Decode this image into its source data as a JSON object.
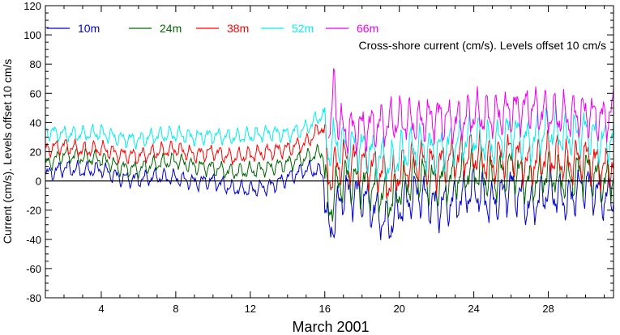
{
  "chart_data": {
    "type": "line",
    "title": "",
    "annotation": "Cross-shore current (cm/s). Levels offset 10 cm/s",
    "xlabel": "March 2001",
    "ylabel": "Current (cm/s). Levels offset 10 cm/s",
    "xlim": [
      1,
      31.5
    ],
    "ylim": [
      -80,
      120
    ],
    "x_ticks": [
      4,
      8,
      12,
      16,
      20,
      24,
      28
    ],
    "y_ticks": [
      -80,
      -60,
      -40,
      -20,
      0,
      20,
      40,
      60,
      80,
      100,
      120
    ],
    "zero_line": 0,
    "legend_placement": "top-left",
    "series": [
      {
        "name": "10m",
        "color": "#0000cc",
        "x": [
          1,
          2,
          3,
          4,
          5,
          6,
          7,
          8,
          9,
          10,
          11,
          12,
          13,
          14,
          15,
          15.9,
          16.2,
          16.6,
          17,
          18,
          19,
          19.5,
          20,
          21,
          22,
          23,
          24,
          25,
          26,
          27,
          28,
          29,
          30,
          31,
          31.5
        ],
        "values": [
          4,
          9,
          7,
          8,
          2,
          1,
          3,
          2,
          -1,
          0,
          -5,
          -6,
          -4,
          2,
          8,
          6,
          -38,
          -22,
          -8,
          -10,
          -25,
          -30,
          -18,
          -8,
          -18,
          -14,
          -6,
          -16,
          -4,
          -18,
          -6,
          -14,
          -2,
          -12,
          -8
        ]
      },
      {
        "name": "24m",
        "color": "#006600",
        "x": [
          1,
          2,
          3,
          4,
          5,
          6,
          7,
          8,
          9,
          10,
          11,
          12,
          13,
          14,
          15,
          15.9,
          16.2,
          16.6,
          17,
          18,
          19,
          19.5,
          20,
          21,
          22,
          23,
          24,
          25,
          26,
          27,
          28,
          29,
          30,
          31,
          31.5
        ],
        "values": [
          11,
          18,
          16,
          15,
          9,
          8,
          12,
          14,
          10,
          9,
          6,
          7,
          9,
          12,
          16,
          20,
          -22,
          -6,
          2,
          -2,
          -8,
          -14,
          -6,
          4,
          -2,
          2,
          8,
          0,
          10,
          -2,
          6,
          0,
          8,
          -2,
          4
        ]
      },
      {
        "name": "38m",
        "color": "#ff0000",
        "x": [
          1,
          2,
          3,
          4,
          5,
          6,
          7,
          8,
          9,
          10,
          11,
          12,
          13,
          14,
          15,
          15.9,
          16.2,
          16.6,
          17,
          18,
          19,
          19.5,
          20,
          21,
          22,
          23,
          24,
          25,
          26,
          27,
          28,
          29,
          30,
          31,
          31.5
        ],
        "values": [
          22,
          24,
          21,
          22,
          18,
          17,
          20,
          22,
          18,
          20,
          16,
          18,
          20,
          22,
          26,
          38,
          2,
          10,
          14,
          12,
          6,
          -2,
          6,
          14,
          10,
          16,
          18,
          12,
          20,
          10,
          18,
          12,
          16,
          8,
          12
        ]
      },
      {
        "name": "52m",
        "color": "#00eeee",
        "x": [
          1,
          2,
          3,
          4,
          5,
          6,
          7,
          8,
          9,
          10,
          11,
          12,
          13,
          14,
          15,
          15.9,
          16.2,
          16.6,
          17,
          18,
          19,
          19.5,
          20,
          21,
          22,
          23,
          24,
          25,
          26,
          27,
          28,
          29,
          30,
          31,
          31.5
        ],
        "values": [
          34,
          32,
          32,
          33,
          29,
          28,
          31,
          32,
          30,
          31,
          30,
          31,
          33,
          32,
          36,
          46,
          20,
          28,
          24,
          22,
          16,
          10,
          18,
          24,
          20,
          26,
          30,
          24,
          34,
          26,
          36,
          30,
          34,
          26,
          30
        ]
      },
      {
        "name": "66m",
        "color": "#ee00ee",
        "x": [
          16.2,
          16.4,
          16.5,
          16.6,
          16.8,
          17,
          18,
          19,
          20,
          21,
          22,
          23,
          24,
          25,
          26,
          27,
          28,
          29,
          30,
          31,
          31.5
        ],
        "values": [
          40,
          34,
          86,
          48,
          38,
          34,
          36,
          38,
          42,
          40,
          44,
          40,
          46,
          44,
          48,
          50,
          46,
          44,
          46,
          42,
          48
        ]
      }
    ]
  }
}
